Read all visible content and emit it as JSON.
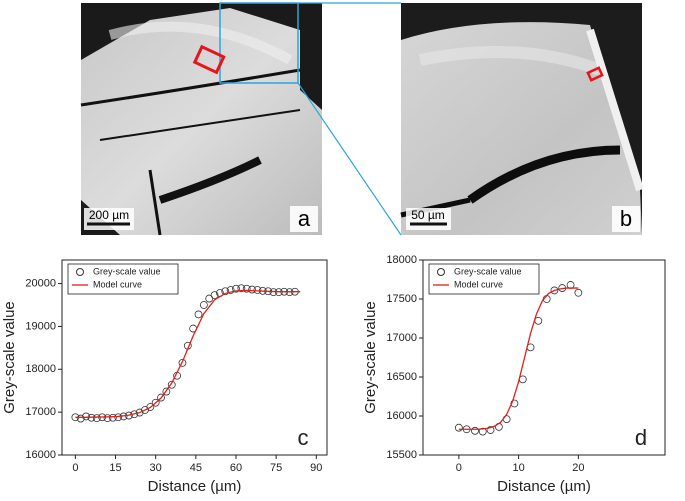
{
  "images": [
    {
      "label": "a",
      "scale": "200 µm"
    },
    {
      "label": "b",
      "scale": "50 µm"
    }
  ],
  "chart_data": [
    {
      "type": "scatter",
      "panel": "c",
      "xlabel": "Distance (µm)",
      "ylabel": "Grey-scale value",
      "xlim": [
        -5,
        94
      ],
      "ylim": [
        16000,
        20550
      ],
      "xticks": [
        0,
        15,
        30,
        45,
        60,
        75,
        90
      ],
      "yticks": [
        16000,
        17000,
        18000,
        19000,
        20000
      ],
      "legend": "upper left",
      "series": [
        {
          "name": "Grey-scale value",
          "type": "scatter",
          "color": "#333333",
          "x": [
            0,
            2,
            4,
            6,
            8,
            10,
            12,
            14,
            16,
            18,
            20,
            22,
            24,
            26,
            28,
            30,
            32,
            34,
            36,
            38,
            40,
            42,
            44,
            46,
            48,
            50,
            52,
            54,
            56,
            58,
            60,
            62,
            64,
            66,
            68,
            70,
            72,
            74,
            76,
            78,
            80,
            82
          ],
          "values": [
            16880,
            16850,
            16900,
            16870,
            16860,
            16880,
            16860,
            16870,
            16880,
            16900,
            16920,
            16950,
            16990,
            17050,
            17120,
            17220,
            17340,
            17480,
            17640,
            17850,
            18150,
            18550,
            18950,
            19280,
            19500,
            19650,
            19730,
            19780,
            19820,
            19850,
            19880,
            19890,
            19880,
            19860,
            19850,
            19830,
            19820,
            19800,
            19800,
            19810,
            19800,
            19810
          ]
        },
        {
          "name": "Model curve",
          "type": "line",
          "color": "#e0201b",
          "x": [
            0,
            4,
            8,
            12,
            16,
            20,
            24,
            28,
            32,
            36,
            40,
            44,
            48,
            52,
            56,
            60,
            64,
            68,
            72,
            76,
            80,
            84
          ],
          "values": [
            16880,
            16880,
            16885,
            16890,
            16900,
            16930,
            16990,
            17110,
            17330,
            17680,
            18180,
            18780,
            19300,
            19620,
            19770,
            19830,
            19840,
            19830,
            19820,
            19810,
            19810,
            19810
          ]
        }
      ]
    },
    {
      "type": "scatter",
      "panel": "d",
      "xlabel": "Distance (µm)",
      "ylabel": "Grey-scale value",
      "xlim": [
        -6,
        34.5
      ],
      "ylim": [
        15500,
        18000
      ],
      "xticks": [
        0,
        10,
        20
      ],
      "yticks": [
        15500,
        16000,
        16500,
        17000,
        17500,
        18000
      ],
      "legend": "upper left",
      "series": [
        {
          "name": "Grey-scale value",
          "type": "scatter",
          "color": "#333333",
          "x": [
            0,
            1.3,
            2.7,
            4,
            5.3,
            6.7,
            8,
            9.3,
            10.7,
            12,
            13.3,
            14.7,
            16,
            17.3,
            18.7,
            20
          ],
          "values": [
            15850,
            15830,
            15810,
            15800,
            15820,
            15860,
            15960,
            16160,
            16470,
            16880,
            17220,
            17500,
            17610,
            17640,
            17680,
            17580
          ]
        },
        {
          "name": "Model curve",
          "type": "line",
          "color": "#e0201b",
          "x": [
            0,
            1,
            2,
            3,
            4,
            5,
            6,
            7,
            8,
            9,
            10,
            11,
            12,
            13,
            14,
            15,
            16,
            17,
            18,
            19,
            20
          ],
          "values": [
            15830,
            15830,
            15830,
            15830,
            15835,
            15845,
            15870,
            15920,
            16020,
            16190,
            16440,
            16750,
            17060,
            17310,
            17480,
            17570,
            17610,
            17630,
            17640,
            17640,
            17640
          ]
        }
      ]
    }
  ]
}
